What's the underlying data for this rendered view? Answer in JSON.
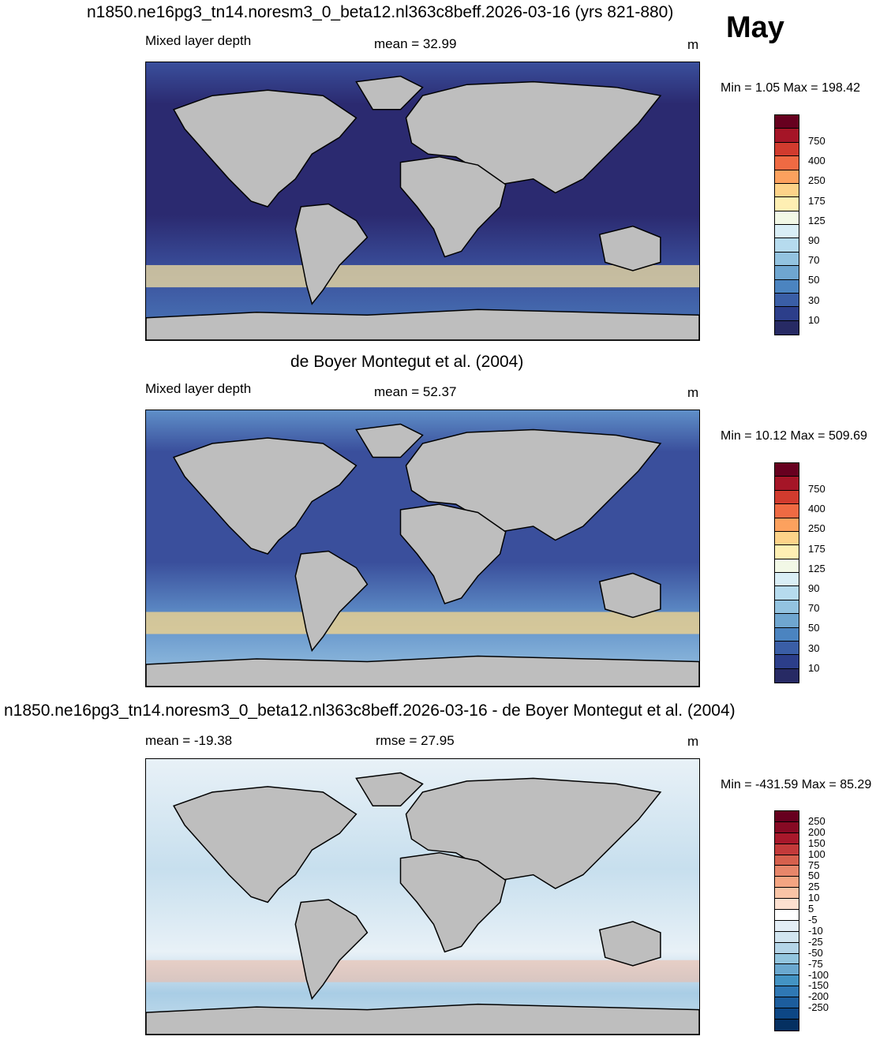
{
  "header": {
    "top_title": "n1850.ne16pg3_tn14.noresm3_0_beta12.nl363c8beff.2026-03-16 (yrs 821-880)",
    "month": "May"
  },
  "panels": [
    {
      "id": "model",
      "left_label": "Mixed layer depth",
      "center_label": "mean =  32.99",
      "units": "m",
      "minmax": "Min =   1.05 Max = 198.42",
      "ocean_colors": [
        "#2b2a70",
        "#3a4f9c",
        "#4b7ab9"
      ],
      "colorbar_labels": [
        "750",
        "400",
        "250",
        "175",
        "125",
        "90",
        "70",
        "50",
        "30",
        "10"
      ],
      "colorbar_colors": [
        "#67001f",
        "#a51527",
        "#d13b2e",
        "#ef6a43",
        "#fca15e",
        "#fdd389",
        "#feefb3",
        "#f2f8e6",
        "#d9eef6",
        "#b6dbee",
        "#93c3e0",
        "#6fa6d0",
        "#4b84c0",
        "#3a5ea6",
        "#2c3e8a",
        "#272a64"
      ]
    },
    {
      "id": "obs",
      "title": "de Boyer Montegut et al. (2004)",
      "left_label": "Mixed layer depth",
      "center_label": "mean =  52.37",
      "units": "m",
      "minmax": "Min =  10.12 Max = 509.69",
      "ocean_colors": [
        "#3a4f9c",
        "#5f8fc8",
        "#9cc6e3"
      ],
      "colorbar_labels": [
        "750",
        "400",
        "250",
        "175",
        "125",
        "90",
        "70",
        "50",
        "30",
        "10"
      ],
      "colorbar_colors": [
        "#67001f",
        "#a51527",
        "#d13b2e",
        "#ef6a43",
        "#fca15e",
        "#fdd389",
        "#feefb3",
        "#f2f8e6",
        "#d9eef6",
        "#b6dbee",
        "#93c3e0",
        "#6fa6d0",
        "#4b84c0",
        "#3a5ea6",
        "#2c3e8a",
        "#272a64"
      ]
    },
    {
      "id": "diff",
      "title": "n1850.ne16pg3_tn14.noresm3_0_beta12.nl363c8beff.2026-03-16 - de Boyer Montegut et al. (2004)",
      "left_label": "mean = -19.38",
      "center_label": "rmse =  27.95",
      "units": "m",
      "minmax": "Min = -431.59 Max =  85.29",
      "ocean_colors": [
        "#c7dfee",
        "#a9cde5",
        "#e8f1f7"
      ],
      "colorbar_labels": [
        "250",
        "200",
        "150",
        "100",
        "75",
        "50",
        "25",
        "10",
        "5",
        "-5",
        "-10",
        "-25",
        "-50",
        "-75",
        "-100",
        "-150",
        "-200",
        "-250"
      ],
      "colorbar_colors": [
        "#67001f",
        "#870a24",
        "#a8182b",
        "#c33a3a",
        "#d6604d",
        "#e7866a",
        "#f4a582",
        "#f9c4a6",
        "#fde0d0",
        "#ffffff",
        "#e3eef6",
        "#d1e5f0",
        "#b4d5e8",
        "#92c5de",
        "#6aa8cf",
        "#4393c3",
        "#2f78b4",
        "#1c5d9d",
        "#0d4785",
        "#053061"
      ]
    }
  ]
}
